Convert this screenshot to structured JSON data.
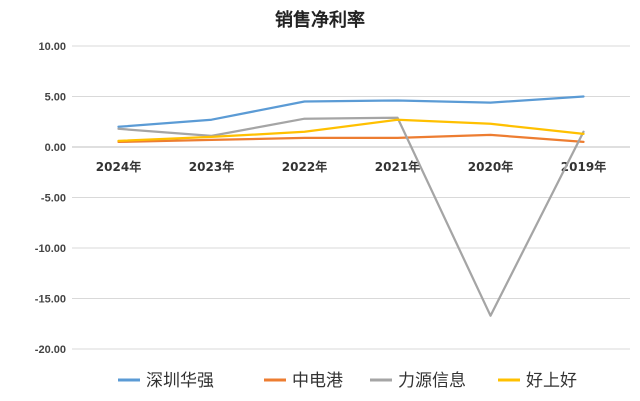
{
  "chart_data": {
    "type": "line",
    "title": "销售净利率",
    "categories": [
      "2024年",
      "2023年",
      "2022年",
      "2021年",
      "2020年",
      "2019年"
    ],
    "ylim": [
      -20,
      10
    ],
    "yticks": [
      "10.00",
      "5.00",
      "0.00",
      "-5.00",
      "-10.00",
      "-15.00",
      "-20.00"
    ],
    "grid": true,
    "legend_position": "bottom",
    "series": [
      {
        "name": "深圳华强",
        "color": "#5B9BD5",
        "values": [
          2.0,
          2.7,
          4.5,
          4.6,
          4.4,
          5.0
        ]
      },
      {
        "name": "中电港",
        "color": "#ED7D31",
        "values": [
          0.5,
          0.7,
          0.9,
          0.9,
          1.2,
          0.5
        ]
      },
      {
        "name": "力源信息",
        "color": "#A5A5A5",
        "values": [
          1.8,
          1.1,
          2.8,
          2.9,
          -16.7,
          1.5
        ]
      },
      {
        "name": "好上好",
        "color": "#FFC000",
        "values": [
          0.6,
          1.0,
          1.5,
          2.7,
          2.3,
          1.3
        ]
      }
    ]
  }
}
